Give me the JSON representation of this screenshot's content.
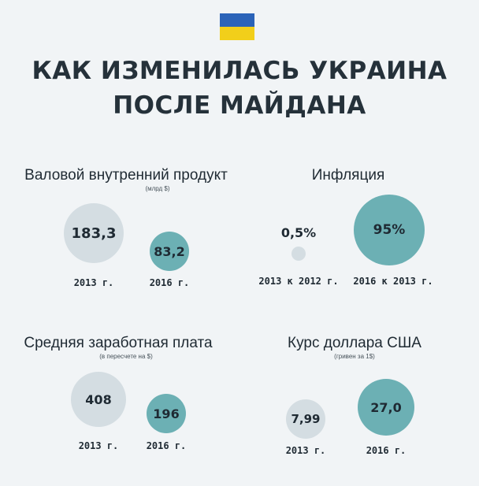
{
  "header": {
    "title_line1": "КАК ИЗМЕНИЛАСЬ УКРАИНА",
    "title_line2": "ПОСЛЕ МАЙДАНА"
  },
  "colors": {
    "background": "#f1f4f6",
    "before": "#d4dde2",
    "after": "#6cb0b4",
    "flag_blue": "#2b63b8",
    "flag_yellow": "#f2cf1a"
  },
  "chart_data": [
    {
      "type": "bubble",
      "title": "Валовой внутренний продукт",
      "subtitle": "(млрд $)",
      "categories": [
        "2013 г.",
        "2016 г."
      ],
      "values": [
        183.3,
        83.2
      ],
      "value_labels": [
        "183,3",
        "83,2"
      ]
    },
    {
      "type": "bubble",
      "title": "Инфляция",
      "subtitle": "",
      "categories": [
        "2013 к 2012 г.",
        "2016 к 2013 г."
      ],
      "values": [
        0.5,
        95
      ],
      "value_labels": [
        "0,5%",
        "95%"
      ]
    },
    {
      "type": "bubble",
      "title": "Средняя заработная плата",
      "subtitle": "(в пересчете на $)",
      "categories": [
        "2013 г.",
        "2016 г."
      ],
      "values": [
        408,
        196
      ],
      "value_labels": [
        "408",
        "196"
      ]
    },
    {
      "type": "bubble",
      "title": "Курс доллара США",
      "subtitle": "(гривен за 1$)",
      "categories": [
        "2013 г.",
        "2016 г."
      ],
      "values": [
        7.99,
        27.0
      ],
      "value_labels": [
        "7,99",
        "27,0"
      ]
    }
  ]
}
